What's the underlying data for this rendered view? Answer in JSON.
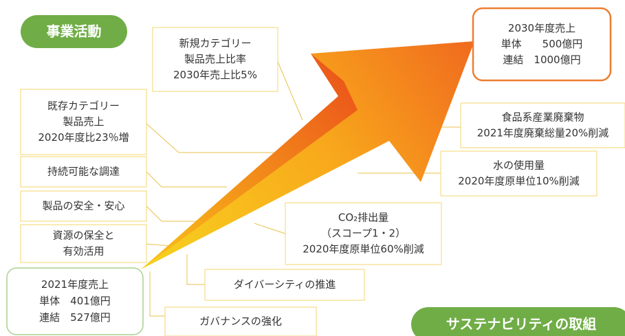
{
  "badges": {
    "business": "事業活動",
    "sustainability": "サステナビリティの取組"
  },
  "start_box": {
    "lines": [
      "2021年度売上",
      "単体　401億円",
      "連結　527億円"
    ]
  },
  "goal_box": {
    "lines": [
      "2030年度売上",
      "単体　　500億円",
      "連結　1000億円"
    ]
  },
  "boxes": [
    {
      "lines": [
        "新規カテゴリー",
        "製品売上比率",
        "2030年売上比5%"
      ]
    },
    {
      "lines": [
        "既存カテゴリー",
        "製品売上",
        "2020年度比23％増"
      ]
    },
    {
      "lines": [
        "持続可能な調達"
      ]
    },
    {
      "lines": [
        "製品の安全・安心"
      ]
    },
    {
      "lines": [
        "資源の保全と",
        "有効活用"
      ]
    },
    {
      "lines": [
        "食品系産業廃棄物",
        "2021年度廃棄総量20%削減"
      ]
    },
    {
      "lines": [
        "水の使用量",
        "2020年度原単位10%削減"
      ]
    },
    {
      "lines": [
        "CO₂排出量",
        "（スコープ1・2）",
        "2020年度原単位60%削減"
      ]
    },
    {
      "lines": [
        "ダイバーシティの推進"
      ]
    },
    {
      "lines": [
        "ガバナンスの強化"
      ]
    }
  ]
}
